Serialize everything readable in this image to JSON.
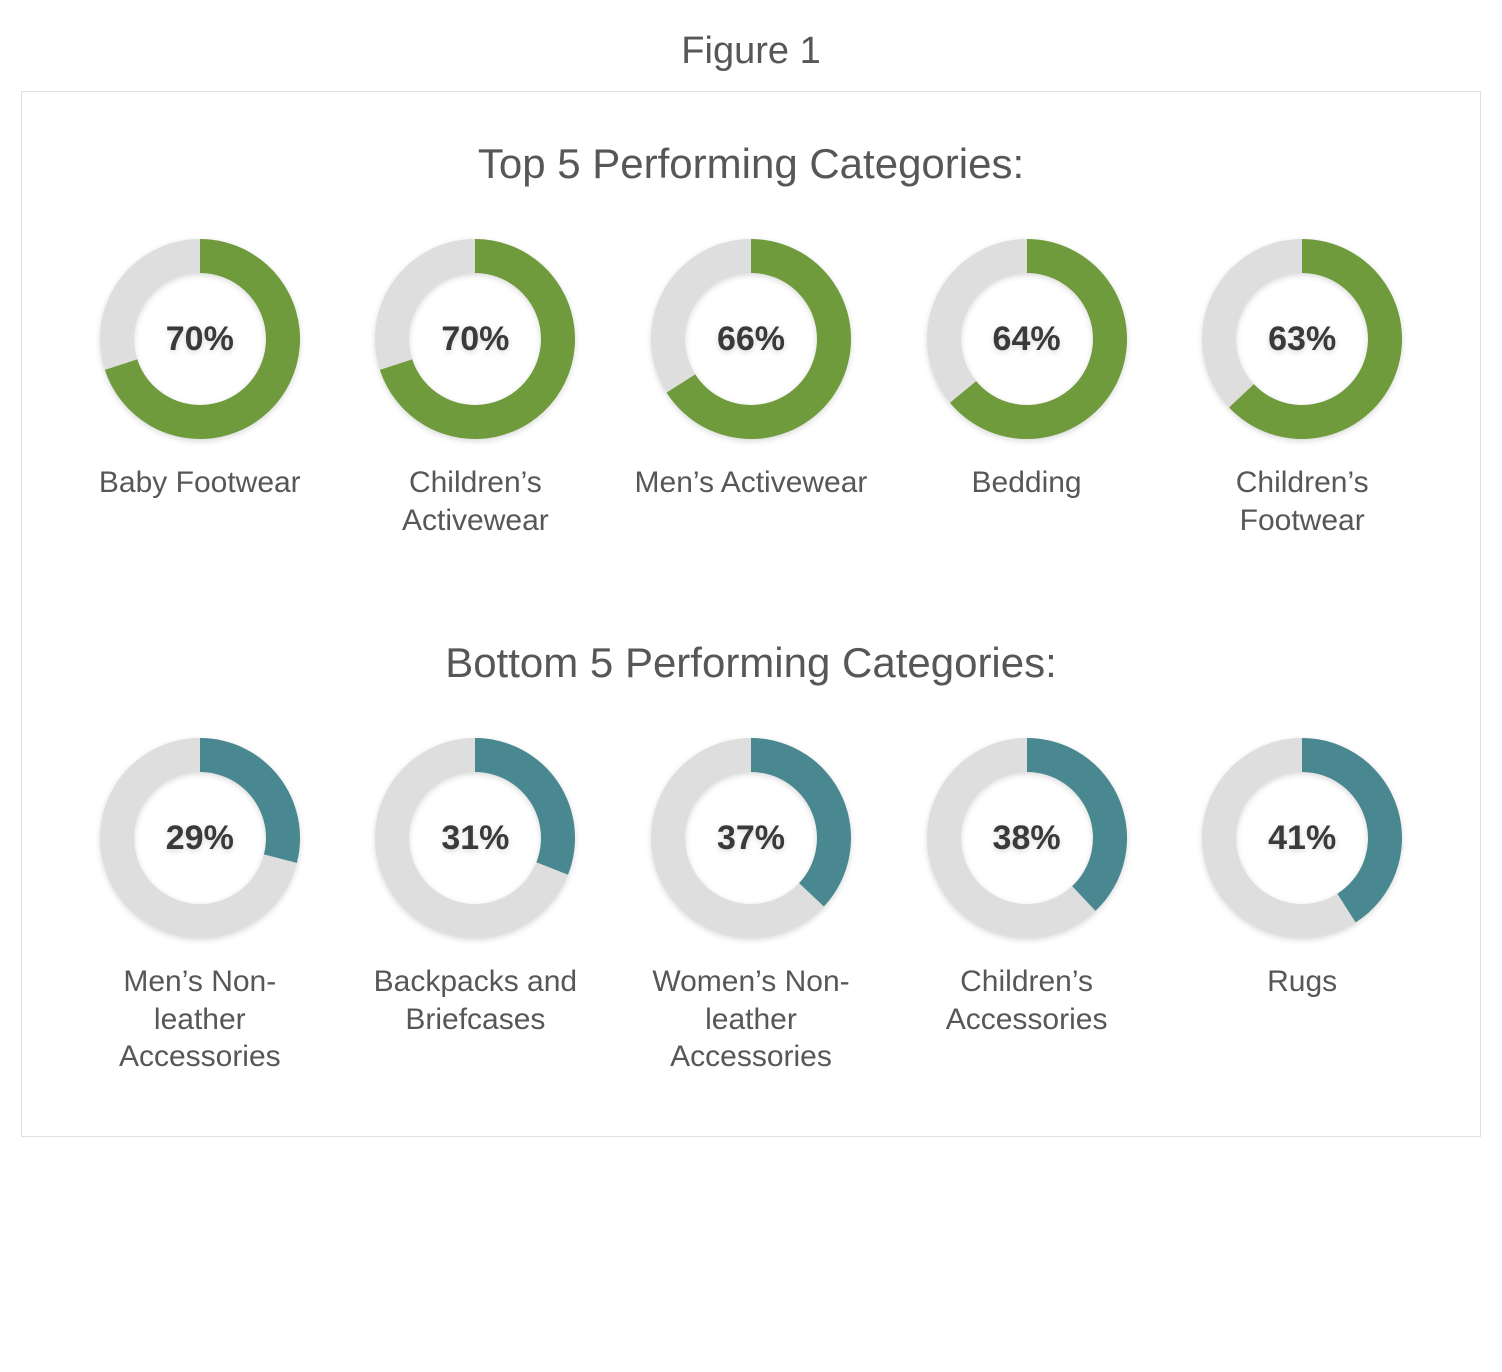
{
  "figure_label": "Figure 1",
  "colors": {
    "ring_bg": "#dedede",
    "text_main": "#575757",
    "text_value": "#3a3a3a",
    "border": "#e0e0e0",
    "top_fill": "#6f9b3c",
    "bottom_fill": "#4a8891"
  },
  "donut": {
    "outer_radius": 100,
    "ring_thickness": 34,
    "start_angle_deg": 0
  },
  "sections": [
    {
      "title": "Top 5 Performing Categories:",
      "fill_key": "top_fill",
      "items": [
        {
          "percent": 70,
          "label": "Baby Footwear"
        },
        {
          "percent": 70,
          "label": "Children’s Activewear"
        },
        {
          "percent": 66,
          "label": "Men’s Activewear"
        },
        {
          "percent": 64,
          "label": "Bedding"
        },
        {
          "percent": 63,
          "label": "Children’s Footwear"
        }
      ]
    },
    {
      "title": "Bottom 5 Performing Categories:",
      "fill_key": "bottom_fill",
      "items": [
        {
          "percent": 29,
          "label": "Men’s Non-leather Accessories"
        },
        {
          "percent": 31,
          "label": "Backpacks and Briefcases"
        },
        {
          "percent": 37,
          "label": "Women’s Non-leather Accessories"
        },
        {
          "percent": 38,
          "label": "Children’s Accessories"
        },
        {
          "percent": 41,
          "label": "Rugs"
        }
      ]
    }
  ]
}
